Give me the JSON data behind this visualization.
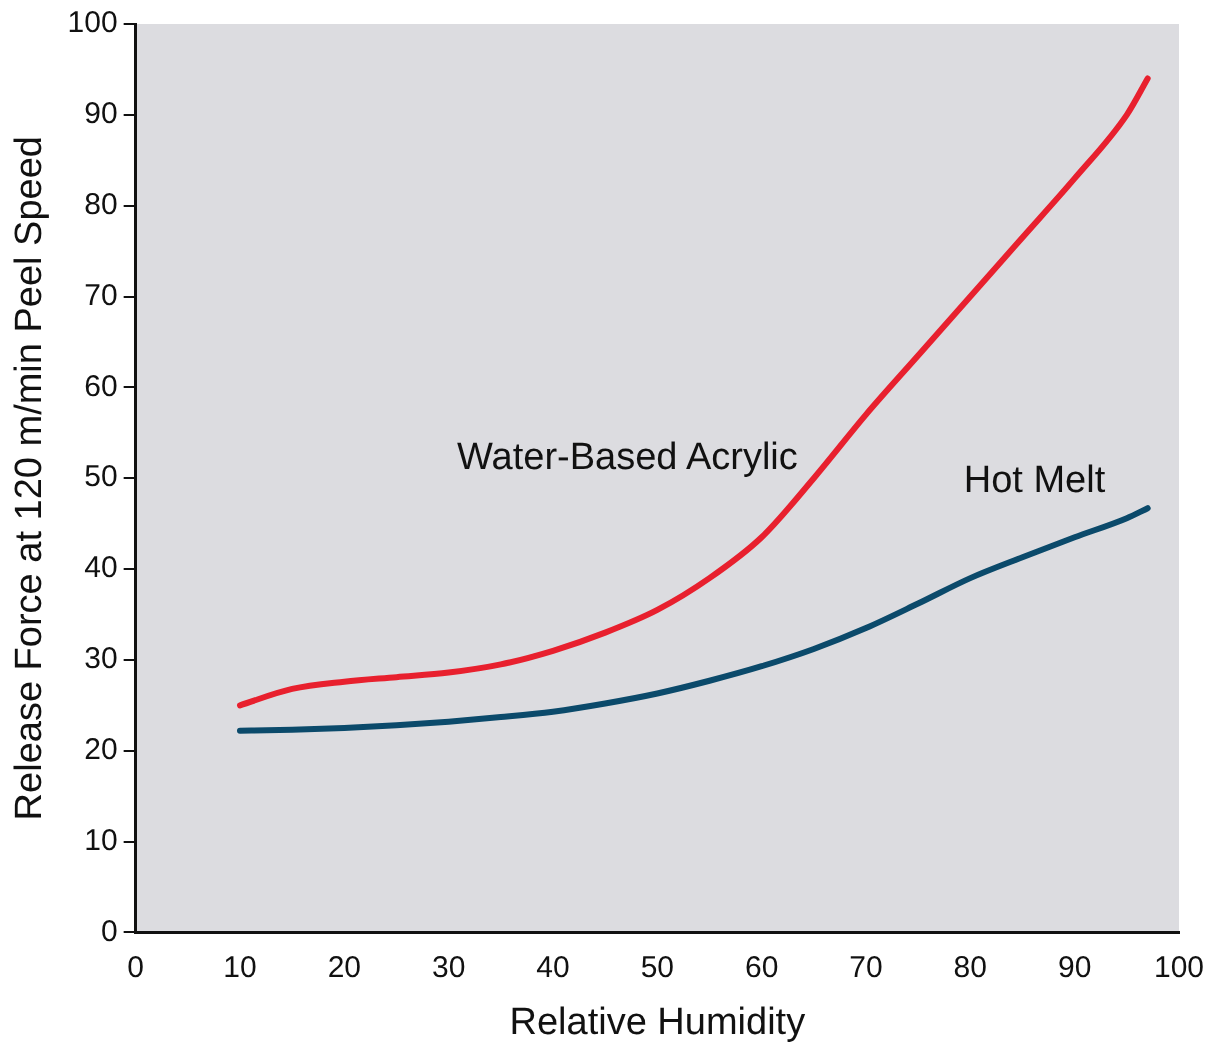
{
  "chart_data": {
    "type": "line",
    "xlabel": "Relative Humidity",
    "ylabel": "Release Force at 120 m/min Peel Speed",
    "xlim": [
      0,
      100
    ],
    "ylim": [
      0,
      100
    ],
    "xticks": [
      0,
      10,
      20,
      30,
      40,
      50,
      60,
      70,
      80,
      90,
      100
    ],
    "yticks": [
      0,
      10,
      20,
      30,
      40,
      50,
      60,
      70,
      80,
      90,
      100
    ],
    "grid": false,
    "legend": false,
    "marker": "none",
    "line_style": "solid",
    "x": [
      10,
      15,
      20,
      25,
      30,
      35,
      40,
      45,
      50,
      55,
      60,
      65,
      70,
      75,
      80,
      85,
      90,
      95,
      97
    ],
    "series": [
      {
        "name": "Water-Based Acrylic",
        "color": "#e8202e",
        "values": [
          25,
          26.8,
          27.6,
          28.1,
          28.6,
          29.5,
          31,
          33,
          35.5,
          39,
          43.5,
          50,
          57,
          63.5,
          70,
          76.5,
          83,
          90,
          94
        ]
      },
      {
        "name": "Hot Melt",
        "color": "#0b4a6b",
        "values": [
          22.2,
          22.3,
          22.5,
          22.8,
          23.2,
          23.7,
          24.3,
          25.2,
          26.3,
          27.7,
          29.3,
          31.2,
          33.5,
          36.2,
          39,
          41.3,
          43.5,
          45.6,
          46.7
        ]
      }
    ]
  }
}
